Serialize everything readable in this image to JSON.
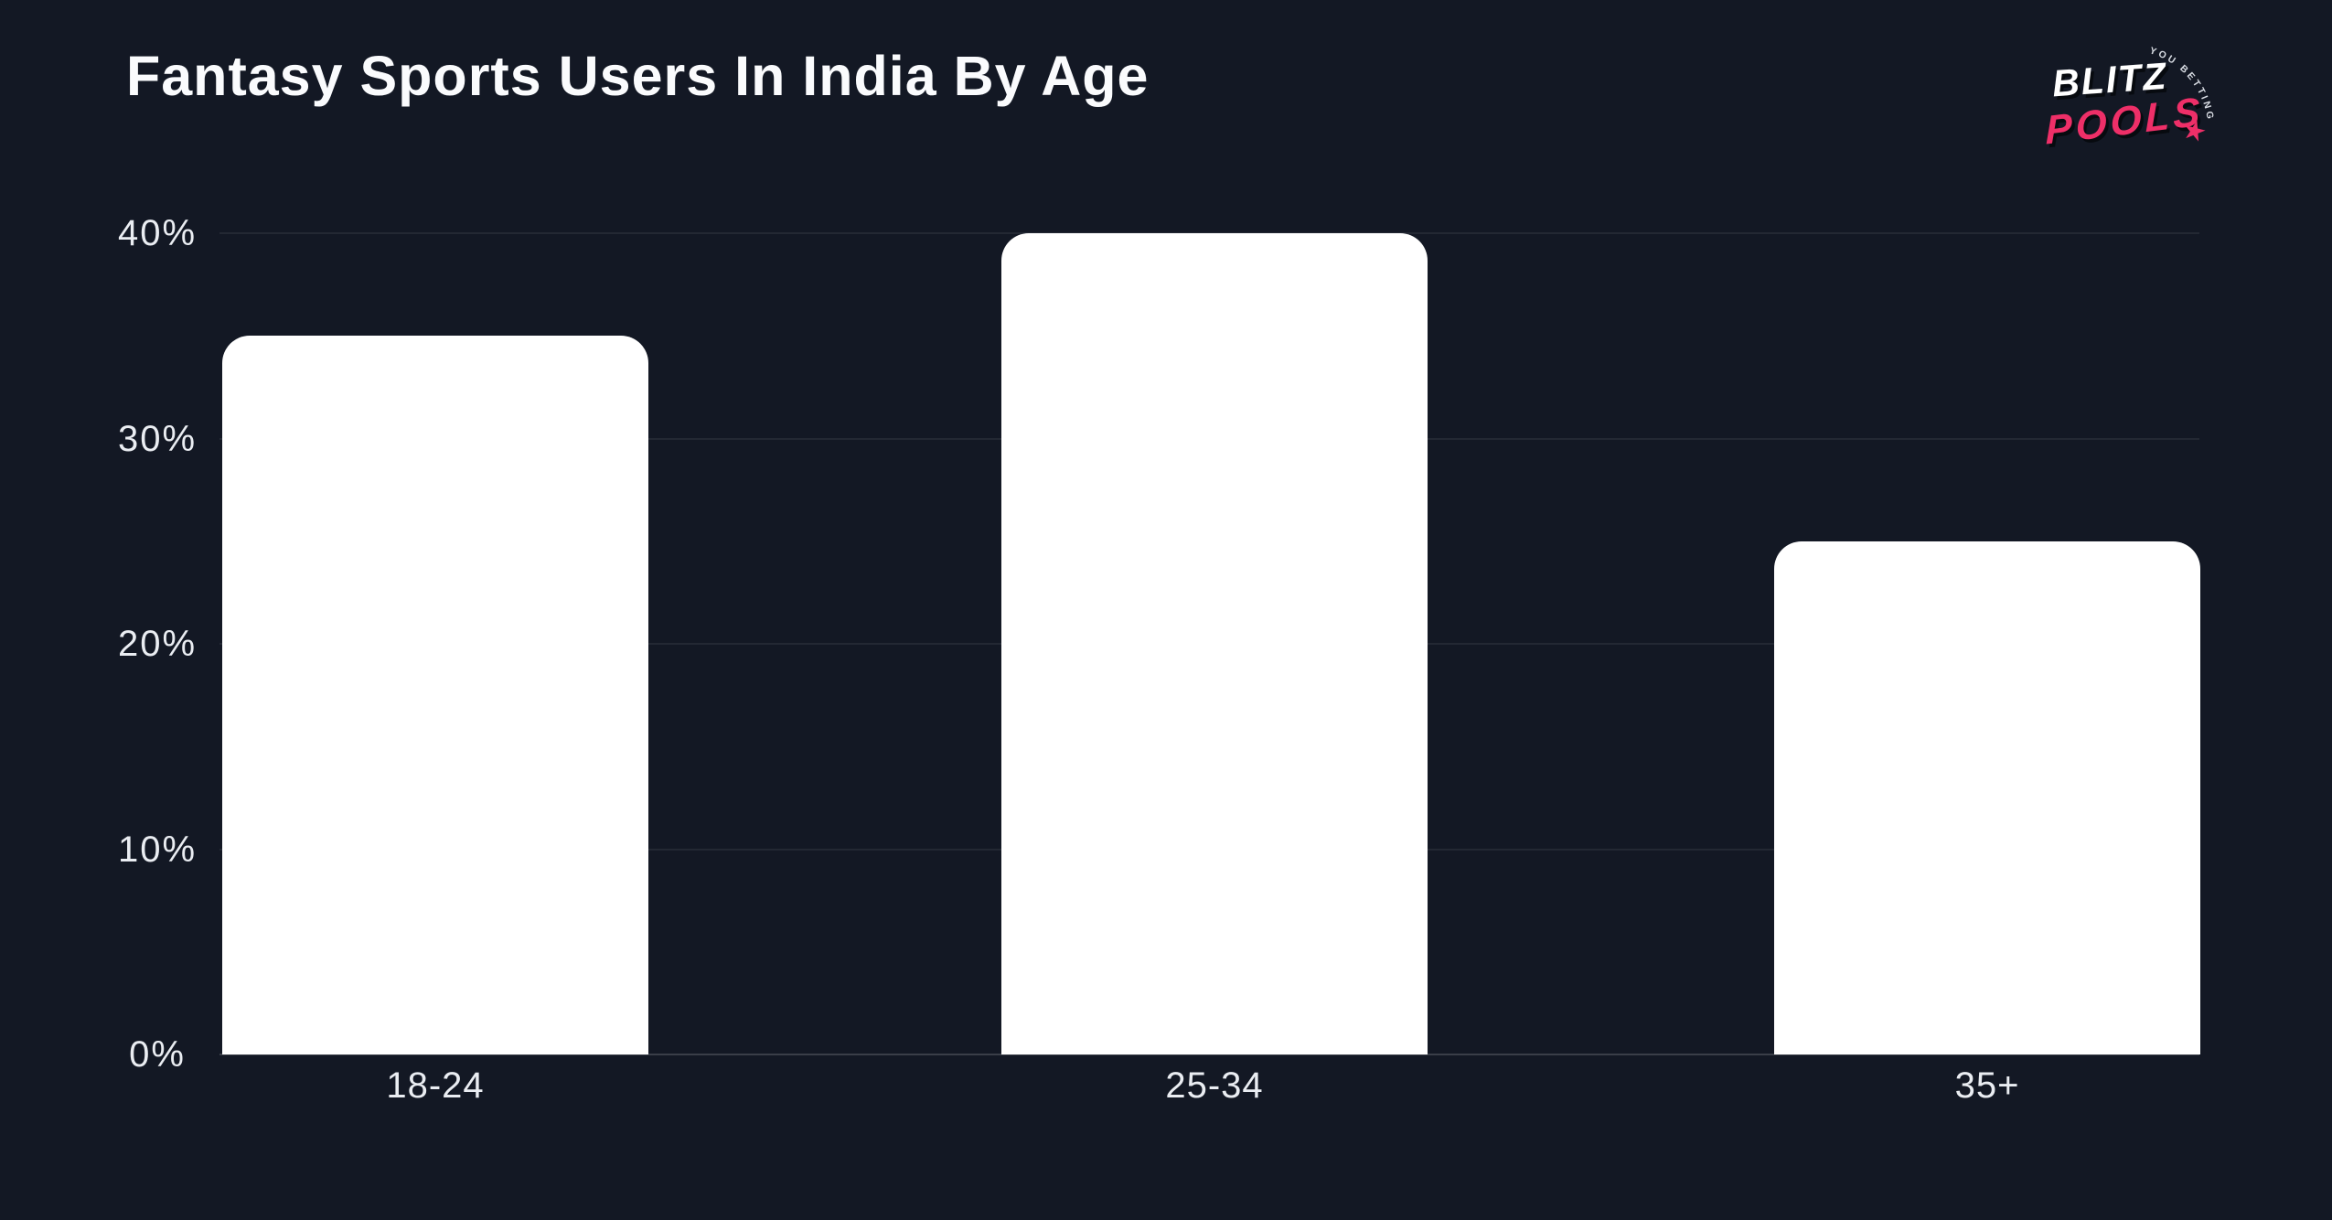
{
  "header": {
    "title": "Fantasy Sports Users In India By Age",
    "logo": {
      "line1": "BLITZ",
      "line2": "POOLS",
      "tagline": "YOU BETTING COACH",
      "star_glyph": "★",
      "pink": "#ee2f68",
      "white": "#ffffff"
    }
  },
  "colors": {
    "background": "#131824",
    "bar_fill": "#ffffff",
    "gridline": "rgba(255,255,255,0.07)",
    "axis_text": "#eaedf2"
  },
  "chart_data": {
    "type": "bar",
    "title": "Fantasy Sports Users In India By Age",
    "categories": [
      "18-24",
      "25-34",
      "35+"
    ],
    "values": [
      35,
      40,
      25
    ],
    "unit": "%",
    "xlabel": "",
    "ylabel": "",
    "ylim": [
      0,
      40
    ],
    "grid": true,
    "legend": null,
    "yticks": [
      {
        "value": 0,
        "label": "0%"
      },
      {
        "value": 10,
        "label": "10%"
      },
      {
        "value": 20,
        "label": "20%"
      },
      {
        "value": 30,
        "label": "30%"
      },
      {
        "value": 40,
        "label": "40%"
      }
    ]
  }
}
